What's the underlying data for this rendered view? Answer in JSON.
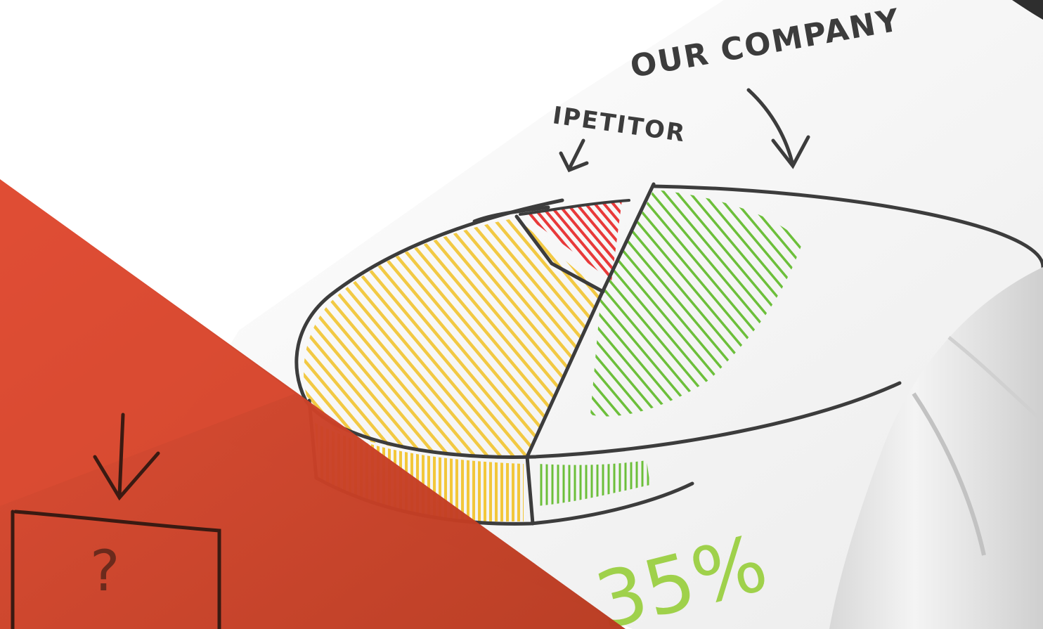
{
  "sketch": {
    "label_your_company": "OUR COMPANY",
    "label_competitor": "IPETITOR",
    "question_mark": "?",
    "percent_label": "35%"
  },
  "colors": {
    "ink": "#3c3c3c",
    "red_slice": "#e8393a",
    "yellow_slice": "#f2c73a",
    "green_slice": "#6cbf3a",
    "percent_green": "#9fd14b",
    "overlay_red": "#c9402a",
    "overlay_red_light": "#df4d33",
    "background": "#ffffff",
    "shirt_white": "#eeeeee"
  }
}
